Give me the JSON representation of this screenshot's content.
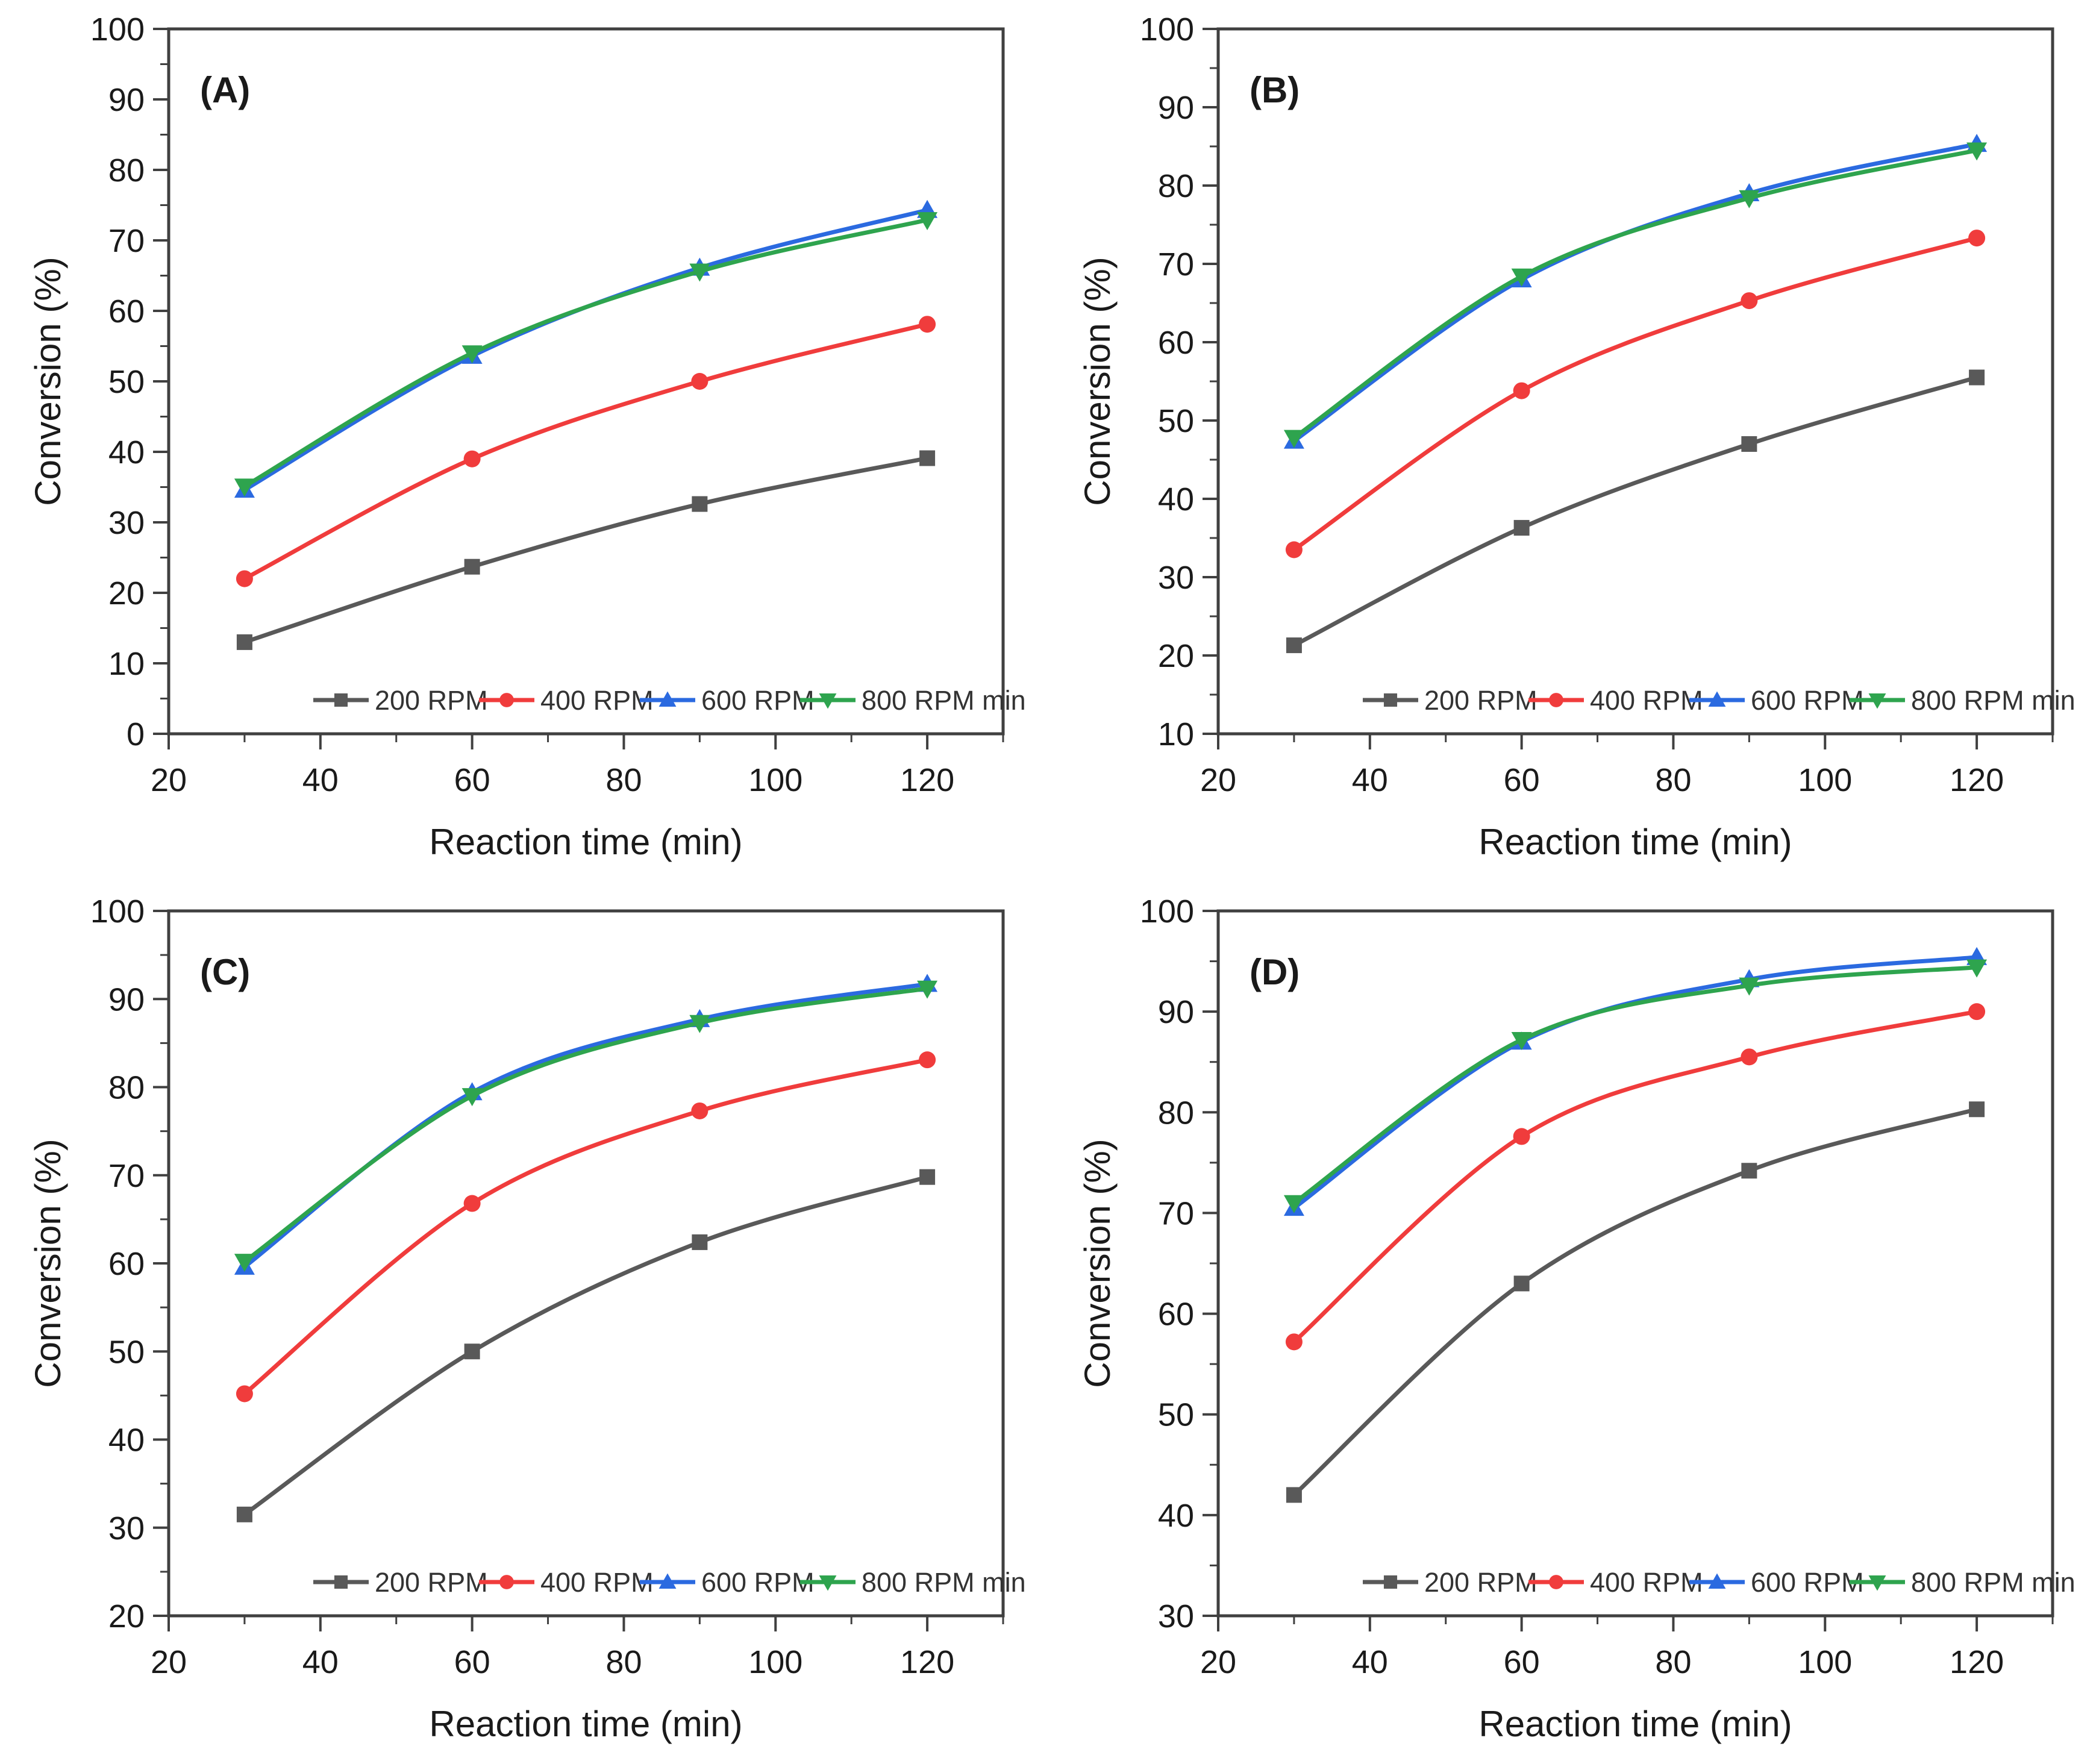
{
  "figure": {
    "x_label": "Reaction time (min)",
    "y_label": "Conversion (%)",
    "legend_labels": [
      "200 RPM",
      "400 RPM",
      "600 RPM",
      "800 RPM min"
    ],
    "colors": {
      "series_200": "#595959",
      "series_400": "#f03c3c",
      "series_600": "#2b6ae0",
      "series_800": "#2ea44e",
      "axis": "#404040",
      "tick_label": "#1a1a1a"
    }
  },
  "chart_data": [
    {
      "type": "line",
      "panel_label": "(A)",
      "xlabel": "Reaction time (min)",
      "ylabel": "Conversion (%)",
      "x": [
        30,
        60,
        90,
        120
      ],
      "xlim": [
        20,
        130
      ],
      "ylim": [
        0,
        100
      ],
      "x_major_ticks": [
        20,
        40,
        60,
        80,
        100,
        120
      ],
      "y_tick_step": 10,
      "legend_position": "bottom-inside",
      "grid": false,
      "series": [
        {
          "name": "200 RPM",
          "marker": "square",
          "color": "#595959",
          "values": [
            13.0,
            23.7,
            32.6,
            39.1
          ]
        },
        {
          "name": "400 RPM",
          "marker": "circle",
          "color": "#f03c3c",
          "values": [
            22.0,
            39.0,
            50.0,
            58.1
          ]
        },
        {
          "name": "600 RPM",
          "marker": "triangle-up",
          "color": "#2b6ae0",
          "values": [
            34.6,
            53.6,
            66.1,
            74.3
          ]
        },
        {
          "name": "800 RPM min",
          "marker": "triangle-down",
          "color": "#2ea44e",
          "values": [
            35.1,
            54.0,
            65.6,
            72.9
          ]
        }
      ]
    },
    {
      "type": "line",
      "panel_label": "(B)",
      "xlabel": "Reaction time (min)",
      "ylabel": "Conversion (%)",
      "x": [
        30,
        60,
        90,
        120
      ],
      "xlim": [
        20,
        130
      ],
      "ylim": [
        10,
        100
      ],
      "x_major_ticks": [
        20,
        40,
        60,
        80,
        100,
        120
      ],
      "y_tick_step": 10,
      "legend_position": "bottom-inside",
      "grid": false,
      "series": [
        {
          "name": "200 RPM",
          "marker": "square",
          "color": "#595959",
          "values": [
            21.3,
            36.3,
            47.0,
            55.5
          ]
        },
        {
          "name": "400 RPM",
          "marker": "circle",
          "color": "#f03c3c",
          "values": [
            33.5,
            53.8,
            65.3,
            73.3
          ]
        },
        {
          "name": "600 RPM",
          "marker": "triangle-up",
          "color": "#2b6ae0",
          "values": [
            47.4,
            68.0,
            79.0,
            85.3
          ]
        },
        {
          "name": "800 RPM min",
          "marker": "triangle-down",
          "color": "#2ea44e",
          "values": [
            47.8,
            68.4,
            78.4,
            84.5
          ]
        }
      ]
    },
    {
      "type": "line",
      "panel_label": "(C)",
      "xlabel": "Reaction time (min)",
      "ylabel": "Conversion (%)",
      "x": [
        30,
        60,
        90,
        120
      ],
      "xlim": [
        20,
        130
      ],
      "ylim": [
        20,
        100
      ],
      "x_major_ticks": [
        20,
        40,
        60,
        80,
        100,
        120
      ],
      "y_tick_step": 10,
      "legend_position": "bottom-inside",
      "grid": false,
      "series": [
        {
          "name": "200 RPM",
          "marker": "square",
          "color": "#595959",
          "values": [
            31.5,
            50.0,
            62.4,
            69.8
          ]
        },
        {
          "name": "400 RPM",
          "marker": "circle",
          "color": "#f03c3c",
          "values": [
            45.2,
            66.8,
            77.3,
            83.1
          ]
        },
        {
          "name": "600 RPM",
          "marker": "triangle-up",
          "color": "#2b6ae0",
          "values": [
            59.6,
            79.4,
            87.7,
            91.7
          ]
        },
        {
          "name": "800 RPM min",
          "marker": "triangle-down",
          "color": "#2ea44e",
          "values": [
            60.2,
            79.0,
            87.3,
            91.2
          ]
        }
      ]
    },
    {
      "type": "line",
      "panel_label": "(D)",
      "xlabel": "Reaction time (min)",
      "ylabel": "Conversion (%)",
      "x": [
        30,
        60,
        90,
        120
      ],
      "xlim": [
        20,
        130
      ],
      "ylim": [
        30,
        100
      ],
      "x_major_ticks": [
        20,
        40,
        60,
        80,
        100,
        120
      ],
      "y_tick_step": 10,
      "legend_position": "bottom-inside",
      "grid": false,
      "series": [
        {
          "name": "200 RPM",
          "marker": "square",
          "color": "#595959",
          "values": [
            42.0,
            63.0,
            74.2,
            80.3
          ]
        },
        {
          "name": "400 RPM",
          "marker": "circle",
          "color": "#f03c3c",
          "values": [
            57.2,
            77.6,
            85.5,
            90.0
          ]
        },
        {
          "name": "600 RPM",
          "marker": "triangle-up",
          "color": "#2b6ae0",
          "values": [
            70.5,
            87.0,
            93.2,
            95.4
          ]
        },
        {
          "name": "800 RPM min",
          "marker": "triangle-down",
          "color": "#2ea44e",
          "values": [
            71.0,
            87.2,
            92.6,
            94.4
          ]
        }
      ]
    }
  ]
}
